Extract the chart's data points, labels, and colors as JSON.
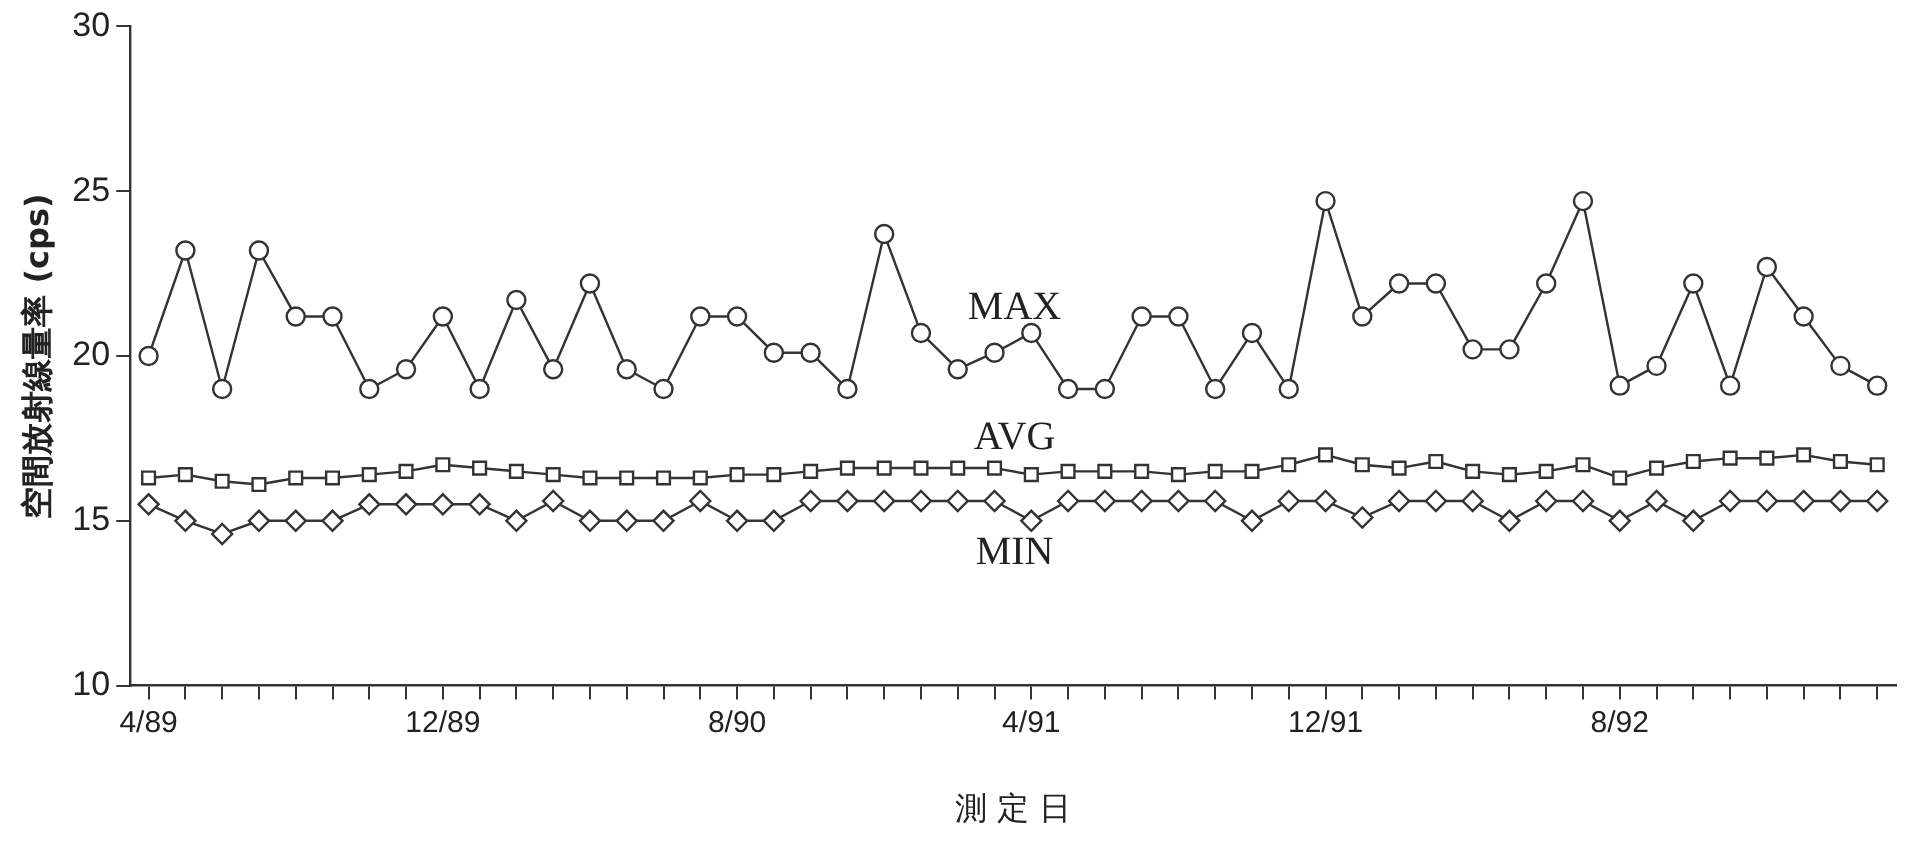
{
  "chart_data": {
    "type": "line",
    "xlabel": "測 定 日",
    "ylabel": "空間放射線量率 (cps)",
    "categories": [
      "4/89",
      null,
      null,
      null,
      null,
      null,
      null,
      null,
      "12/89",
      null,
      null,
      null,
      null,
      null,
      null,
      null,
      "8/90",
      null,
      null,
      null,
      null,
      null,
      null,
      null,
      "4/91",
      null,
      null,
      null,
      null,
      null,
      null,
      null,
      "12/91",
      null,
      null,
      null,
      null,
      null,
      null,
      null,
      "8/92",
      null,
      null,
      null,
      null,
      null,
      null,
      null
    ],
    "ylim": [
      10,
      30
    ],
    "yticks": [
      10,
      15,
      20,
      25,
      30
    ],
    "grid": false,
    "legend": false,
    "line_style": "solid",
    "series": [
      {
        "name": "MAX",
        "color": "#333333",
        "marker": "circle",
        "values": [
          20,
          23.2,
          19,
          23.2,
          21.2,
          21.2,
          19,
          19.6,
          21.2,
          19,
          21.7,
          19.6,
          22.2,
          19.6,
          19,
          21.2,
          21.2,
          20.1,
          20.1,
          19,
          23.7,
          20.7,
          19.6,
          20.1,
          20.7,
          19,
          19,
          21.2,
          21.2,
          19,
          20.7,
          19,
          24.7,
          21.2,
          22.2,
          22.2,
          20.2,
          20.2,
          22.2,
          24.7,
          19.1,
          19.7,
          22.2,
          19.1,
          22.7,
          21.2,
          19.7,
          19.1
        ]
      },
      {
        "name": "AVG",
        "color": "#333333",
        "marker": "square",
        "values": [
          16.3,
          16.4,
          16.2,
          16.1,
          16.3,
          16.3,
          16.4,
          16.5,
          16.7,
          16.6,
          16.5,
          16.4,
          16.3,
          16.3,
          16.3,
          16.3,
          16.4,
          16.4,
          16.5,
          16.6,
          16.6,
          16.6,
          16.6,
          16.6,
          16.4,
          16.5,
          16.5,
          16.5,
          16.4,
          16.5,
          16.5,
          16.7,
          17,
          16.7,
          16.6,
          16.8,
          16.5,
          16.4,
          16.5,
          16.7,
          16.3,
          16.6,
          16.8,
          16.9,
          16.9,
          17,
          16.8,
          16.7
        ]
      },
      {
        "name": "MIN",
        "color": "#333333",
        "marker": "diamond",
        "values": [
          15.5,
          15,
          14.6,
          15,
          15,
          15,
          15.5,
          15.5,
          15.5,
          15.5,
          15,
          15.6,
          15,
          15,
          15,
          15.6,
          15,
          15,
          15.6,
          15.6,
          15.6,
          15.6,
          15.6,
          15.6,
          15,
          15.6,
          15.6,
          15.6,
          15.6,
          15.6,
          15,
          15.6,
          15.6,
          15.1,
          15.6,
          15.6,
          15.6,
          15,
          15.6,
          15.6,
          15,
          15.6,
          15,
          15.6,
          15.6,
          15.6,
          15.6,
          15.6
        ]
      }
    ]
  }
}
